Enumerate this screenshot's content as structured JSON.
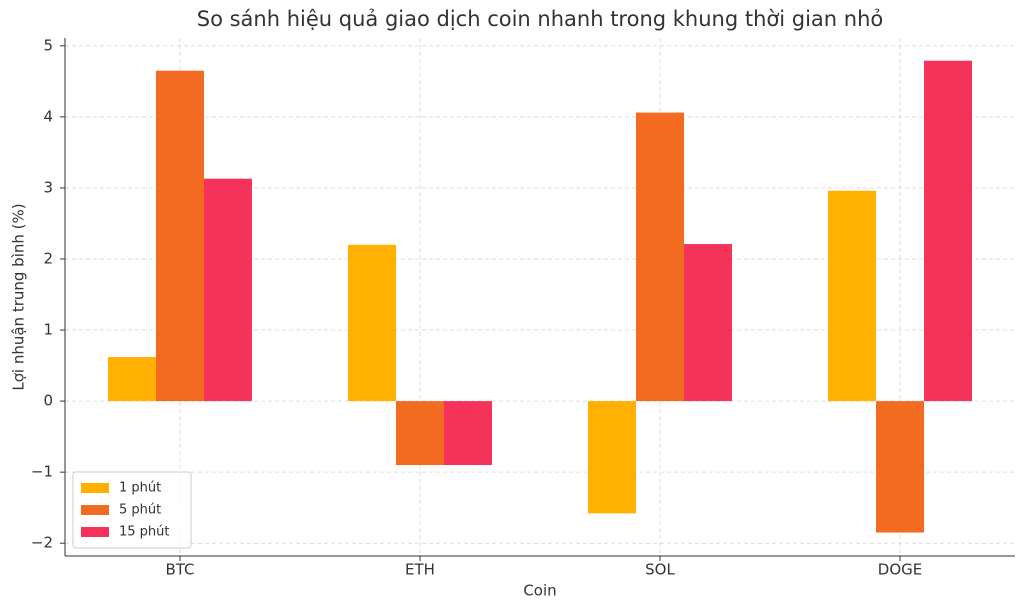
{
  "chart_data": {
    "type": "bar",
    "title": "So sánh hiệu quả giao dịch coin nhanh trong khung thời gian nhỏ",
    "x_label": "Coin",
    "y_label": "Lợi nhuận trung bình (%)",
    "categories": [
      "BTC",
      "ETH",
      "SOL",
      "DOGE"
    ],
    "series": [
      {
        "name": "1 phút",
        "color": "#ffb000",
        "values": [
          0.62,
          2.2,
          -1.58,
          2.96
        ]
      },
      {
        "name": "5 phút",
        "color": "#f26b21",
        "values": [
          4.65,
          -0.9,
          4.06,
          -1.85
        ]
      },
      {
        "name": "15 phút",
        "color": "#f5325a",
        "values": [
          3.13,
          -0.9,
          2.21,
          4.79
        ]
      }
    ],
    "ylim": [
      -2.18,
      5.11
    ],
    "yticks": [
      {
        "value": -2,
        "label": "−2"
      },
      {
        "value": -1,
        "label": "−1"
      },
      0,
      1,
      2,
      3,
      4,
      5
    ],
    "grid": true,
    "legend": "lower left"
  }
}
